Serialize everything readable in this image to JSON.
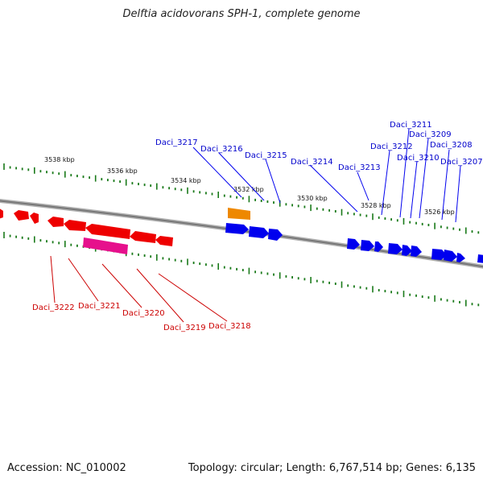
{
  "title": "Delftia acidovorans SPH-1, complete genome",
  "footer": {
    "accession": "Accession: NC_010002",
    "topology": "Topology: circular; Length: 6,767,514 bp; Genes: 6,135"
  },
  "colors": {
    "forward_gene": "#0000ee",
    "reverse_gene": "#ee0000",
    "rna_gene": "#ee8800",
    "pink_gene": "#e6108c",
    "forward_label": "#0000cc",
    "reverse_label": "#cc0000",
    "tick": "#1a7a1a",
    "backbone": "#808080"
  },
  "scale": {
    "unit": "kbp",
    "labels": [
      "3538 kbp",
      "3536 kbp",
      "3534 kbp",
      "3532 kbp",
      "3530 kbp",
      "3528 kbp",
      "3526 kbp"
    ]
  },
  "forward_genes": [
    "Daci_3217",
    "Daci_3216",
    "Daci_3215",
    "Daci_3214",
    "Daci_3213",
    "Daci_3212",
    "Daci_3211",
    "Daci_3210",
    "Daci_3209",
    "Daci_3208",
    "Daci_3207"
  ],
  "reverse_genes": [
    "Daci_3222",
    "Daci_3221",
    "Daci_3220",
    "Daci_3219",
    "Daci_3218"
  ]
}
